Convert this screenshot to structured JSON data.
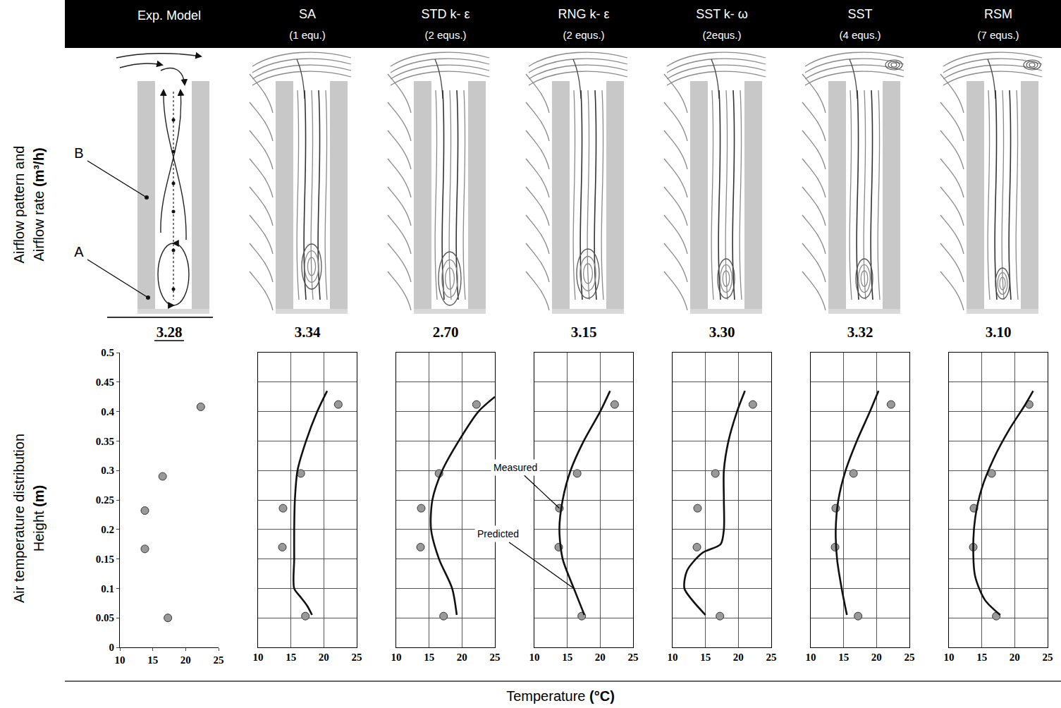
{
  "figure": {
    "row_labels": [
      [
        "Airflow pattern and",
        "Airflow rate (m³/h)"
      ],
      [
        "Air temperature distribution",
        "Height (m)"
      ]
    ],
    "x_label": "Temperature (°C)",
    "diagram_labels": [
      "A",
      "B"
    ]
  },
  "chart_data": [
    {
      "type": "scatter",
      "title": "Exp. Model",
      "annotations": [
        {
          "text": "3.28"
        }
      ],
      "xlim": [
        10,
        25
      ],
      "xticks": [
        10,
        15,
        20,
        25
      ],
      "ylim": [
        0,
        0.5
      ],
      "yticks": [
        0,
        0.05,
        0.1,
        0.15,
        0.2,
        0.25,
        0.3,
        0.35,
        0.4,
        0.45,
        0.5
      ],
      "grid": false,
      "series": [
        {
          "type": "scatter",
          "marker": "circle",
          "color": "#999999",
          "x": [
            17.3,
            13.8,
            13.8,
            16.5,
            22.3
          ],
          "values": [
            0.05,
            0.167,
            0.232,
            0.29,
            0.408
          ]
        }
      ]
    },
    {
      "type": "scatter",
      "title": "SA",
      "subtitle": "(1 equ.)",
      "annotations": [
        {
          "text": "3.34"
        }
      ],
      "xlim": [
        10,
        25
      ],
      "xticks": [
        10,
        15,
        20,
        25
      ],
      "ylim": [
        0,
        0.5
      ],
      "yticks": [
        0,
        0.05,
        0.1,
        0.15,
        0.2,
        0.25,
        0.3,
        0.35,
        0.4,
        0.45,
        0.5
      ],
      "grid": true,
      "tick_labels": "x",
      "series": [
        {
          "type": "scatter",
          "marker": "circle",
          "color": "#999999",
          "x": [
            17.2,
            13.7,
            13.8,
            16.5,
            22.2
          ],
          "values": [
            0.053,
            0.17,
            0.236,
            0.295,
            0.412
          ]
        },
        {
          "type": "line",
          "line_style": "solid",
          "color": "#111111",
          "x": [
            18.2,
            17.5,
            16.5,
            15.5,
            15.5,
            15.5,
            15.6,
            16,
            17.3,
            19,
            20.5
          ],
          "values": [
            0.055,
            0.07,
            0.085,
            0.1,
            0.15,
            0.2,
            0.25,
            0.3,
            0.35,
            0.4,
            0.435
          ]
        }
      ]
    },
    {
      "type": "scatter",
      "title": "STD k- ε",
      "subtitle": "(2 equs.)",
      "annotations": [
        {
          "text": "2.70"
        }
      ],
      "xlim": [
        10,
        25
      ],
      "xticks": [
        10,
        15,
        20,
        25
      ],
      "ylim": [
        0,
        0.5
      ],
      "yticks": [
        0,
        0.05,
        0.1,
        0.15,
        0.2,
        0.25,
        0.3,
        0.35,
        0.4,
        0.45,
        0.5
      ],
      "grid": true,
      "tick_labels": "x",
      "series": [
        {
          "type": "scatter",
          "marker": "circle",
          "color": "#999999",
          "x": [
            17.2,
            13.7,
            13.8,
            16.5,
            22.2
          ],
          "values": [
            0.053,
            0.17,
            0.236,
            0.295,
            0.412
          ]
        },
        {
          "type": "line",
          "line_style": "solid",
          "color": "#111111",
          "x": [
            19.2,
            18.5,
            16.5,
            15.3,
            15.5,
            17,
            19.5,
            22.5,
            25
          ],
          "values": [
            0.055,
            0.1,
            0.15,
            0.2,
            0.25,
            0.3,
            0.35,
            0.4,
            0.425
          ]
        }
      ]
    },
    {
      "type": "scatter",
      "title": "RNG k- ε",
      "subtitle": "(2 equs.)",
      "annotations": [
        {
          "text": "3.15"
        }
      ],
      "xlim": [
        10,
        25
      ],
      "xticks": [
        10,
        15,
        20,
        25
      ],
      "ylim": [
        0,
        0.5
      ],
      "yticks": [
        0,
        0.05,
        0.1,
        0.15,
        0.2,
        0.25,
        0.3,
        0.35,
        0.4,
        0.45,
        0.5
      ],
      "grid": true,
      "tick_labels": "x",
      "series": [
        {
          "name": "Measured",
          "type": "scatter",
          "marker": "circle",
          "color": "#999999",
          "x": [
            17.2,
            13.7,
            13.8,
            16.5,
            22.2
          ],
          "values": [
            0.053,
            0.17,
            0.236,
            0.295,
            0.412
          ]
        },
        {
          "name": "Predicted",
          "type": "line",
          "line_style": "solid",
          "color": "#111111",
          "x": [
            17.6,
            16,
            14.3,
            13.8,
            14.3,
            15.5,
            17.5,
            20,
            21.5
          ],
          "values": [
            0.055,
            0.1,
            0.15,
            0.2,
            0.25,
            0.3,
            0.35,
            0.4,
            0.435
          ]
        }
      ]
    },
    {
      "type": "scatter",
      "title": "SST k- ω",
      "subtitle": "(2equs.)",
      "annotations": [
        {
          "text": "3.30"
        }
      ],
      "xlim": [
        10,
        25
      ],
      "xticks": [
        10,
        15,
        20,
        25
      ],
      "ylim": [
        0,
        0.5
      ],
      "yticks": [
        0,
        0.05,
        0.1,
        0.15,
        0.2,
        0.25,
        0.3,
        0.35,
        0.4,
        0.45,
        0.5
      ],
      "grid": true,
      "tick_labels": "x",
      "series": [
        {
          "type": "scatter",
          "marker": "circle",
          "color": "#999999",
          "x": [
            17.2,
            13.7,
            13.8,
            16.5,
            22.2
          ],
          "values": [
            0.053,
            0.17,
            0.236,
            0.295,
            0.412
          ]
        },
        {
          "type": "line",
          "line_style": "solid",
          "color": "#111111",
          "x": [
            15,
            13,
            11.8,
            12.2,
            14.5,
            17.3,
            17.8,
            17.8,
            17.8,
            18.5,
            19.8,
            21
          ],
          "values": [
            0.055,
            0.08,
            0.1,
            0.13,
            0.16,
            0.175,
            0.2,
            0.25,
            0.3,
            0.35,
            0.4,
            0.435
          ]
        }
      ]
    },
    {
      "type": "scatter",
      "title": "SST",
      "subtitle": "(4 equs.)",
      "annotations": [
        {
          "text": "3.32"
        }
      ],
      "xlim": [
        10,
        25
      ],
      "xticks": [
        10,
        15,
        20,
        25
      ],
      "ylim": [
        0,
        0.5
      ],
      "yticks": [
        0,
        0.05,
        0.1,
        0.15,
        0.2,
        0.25,
        0.3,
        0.35,
        0.4,
        0.45,
        0.5
      ],
      "grid": true,
      "tick_labels": "x",
      "series": [
        {
          "type": "scatter",
          "marker": "circle",
          "color": "#999999",
          "x": [
            17.2,
            13.7,
            13.8,
            16.5,
            22.2
          ],
          "values": [
            0.053,
            0.17,
            0.236,
            0.295,
            0.412
          ]
        },
        {
          "type": "line",
          "line_style": "solid",
          "color": "#111111",
          "x": [
            15.5,
            14.7,
            14,
            13.8,
            14.2,
            15.3,
            17,
            19,
            20.3
          ],
          "values": [
            0.055,
            0.1,
            0.15,
            0.2,
            0.25,
            0.3,
            0.35,
            0.4,
            0.435
          ]
        }
      ]
    },
    {
      "type": "scatter",
      "title": "RSM",
      "subtitle": "(7 equs.)",
      "annotations": [
        {
          "text": "3.10"
        }
      ],
      "xlim": [
        10,
        25
      ],
      "xticks": [
        10,
        15,
        20,
        25
      ],
      "ylim": [
        0,
        0.5
      ],
      "yticks": [
        0,
        0.05,
        0.1,
        0.15,
        0.2,
        0.25,
        0.3,
        0.35,
        0.4,
        0.45,
        0.5
      ],
      "grid": true,
      "tick_labels": "x",
      "series": [
        {
          "type": "scatter",
          "marker": "circle",
          "color": "#999999",
          "x": [
            17.2,
            13.7,
            13.8,
            16.5,
            22.2
          ],
          "values": [
            0.053,
            0.17,
            0.236,
            0.295,
            0.412
          ]
        },
        {
          "type": "line",
          "line_style": "solid",
          "color": "#111111",
          "x": [
            17.8,
            15.5,
            14,
            13.7,
            14,
            15,
            16.8,
            19.2,
            21.5,
            22.8
          ],
          "values": [
            0.055,
            0.08,
            0.12,
            0.17,
            0.22,
            0.27,
            0.32,
            0.37,
            0.41,
            0.435
          ]
        }
      ]
    }
  ]
}
